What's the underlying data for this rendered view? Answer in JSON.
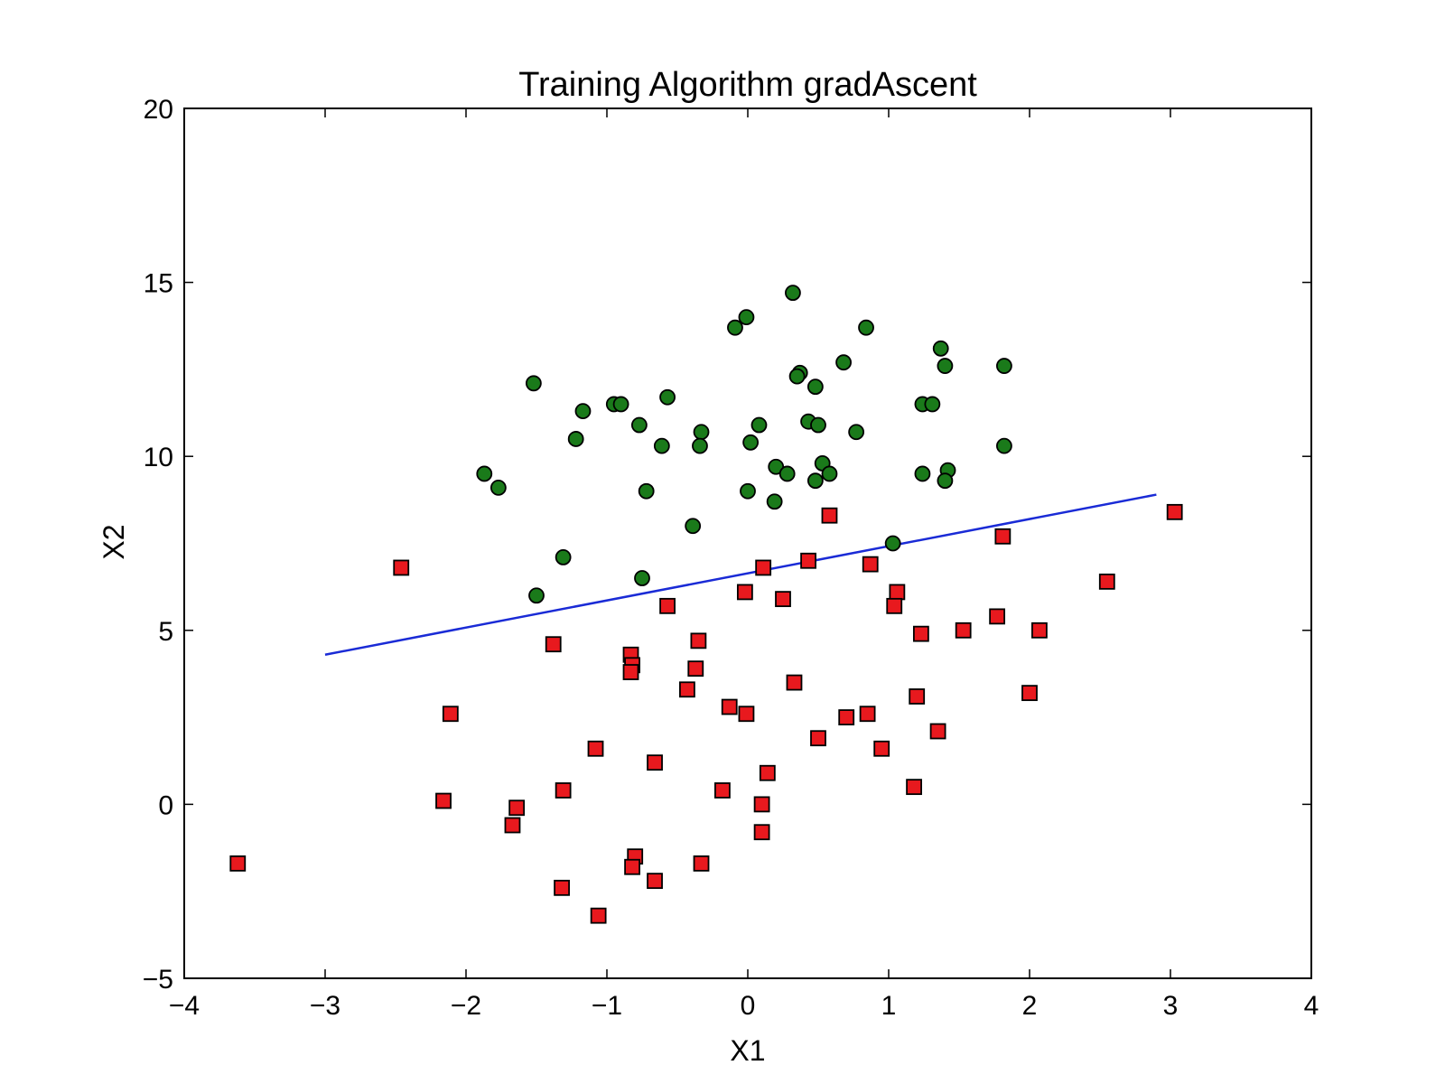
{
  "chart_data": {
    "type": "scatter",
    "title": "Training Algorithm gradAscent",
    "xlabel": "X1",
    "ylabel": "X2",
    "xlim": [
      -4,
      4
    ],
    "ylim": [
      -5,
      20
    ],
    "xticks": [
      -4,
      -3,
      -2,
      -1,
      0,
      1,
      2,
      3,
      4
    ],
    "yticks": [
      -5,
      0,
      5,
      10,
      15,
      20
    ],
    "xtick_labels": [
      "−4",
      "−3",
      "−2",
      "−1",
      "0",
      "1",
      "2",
      "3",
      "4"
    ],
    "ytick_labels": [
      "−5",
      "0",
      "5",
      "10",
      "15",
      "20"
    ],
    "grid": false,
    "colors": {
      "class1_fill": "#1a7a1a",
      "class0_fill": "#e8191e",
      "line": "#1a2bd6",
      "marker_edge": "#000000"
    },
    "series": [
      {
        "marker": "circle",
        "points": [
          [
            0.32,
            14.7
          ],
          [
            -0.01,
            14.0
          ],
          [
            -0.09,
            13.7
          ],
          [
            0.84,
            13.7
          ],
          [
            1.37,
            13.1
          ],
          [
            0.68,
            12.7
          ],
          [
            1.82,
            12.6
          ],
          [
            1.4,
            12.6
          ],
          [
            0.37,
            12.4
          ],
          [
            0.35,
            12.3
          ],
          [
            -1.52,
            12.1
          ],
          [
            0.48,
            12.0
          ],
          [
            -0.57,
            11.7
          ],
          [
            1.24,
            11.5
          ],
          [
            1.31,
            11.5
          ],
          [
            -0.95,
            11.5
          ],
          [
            -0.9,
            11.5
          ],
          [
            -1.17,
            11.3
          ],
          [
            0.43,
            11.0
          ],
          [
            0.5,
            10.9
          ],
          [
            0.08,
            10.9
          ],
          [
            -0.77,
            10.9
          ],
          [
            -0.33,
            10.7
          ],
          [
            0.77,
            10.7
          ],
          [
            -1.22,
            10.5
          ],
          [
            0.02,
            10.4
          ],
          [
            -0.61,
            10.3
          ],
          [
            -0.34,
            10.3
          ],
          [
            1.82,
            10.3
          ],
          [
            0.53,
            9.8
          ],
          [
            0.2,
            9.7
          ],
          [
            1.42,
            9.6
          ],
          [
            1.24,
            9.5
          ],
          [
            0.28,
            9.5
          ],
          [
            0.58,
            9.5
          ],
          [
            -1.87,
            9.5
          ],
          [
            0.48,
            9.3
          ],
          [
            1.4,
            9.3
          ],
          [
            -1.77,
            9.1
          ],
          [
            -0.72,
            9.0
          ],
          [
            0.0,
            9.0
          ],
          [
            0.19,
            8.7
          ],
          [
            -0.39,
            8.0
          ],
          [
            1.03,
            7.5
          ],
          [
            -1.31,
            7.1
          ],
          [
            -0.75,
            6.5
          ],
          [
            -1.5,
            6.0
          ]
        ]
      },
      {
        "marker": "square",
        "points": [
          [
            3.03,
            8.4
          ],
          [
            0.58,
            8.3
          ],
          [
            1.81,
            7.7
          ],
          [
            0.43,
            7.0
          ],
          [
            0.87,
            6.9
          ],
          [
            -2.46,
            6.8
          ],
          [
            0.11,
            6.8
          ],
          [
            2.55,
            6.4
          ],
          [
            -0.02,
            6.1
          ],
          [
            1.06,
            6.1
          ],
          [
            0.25,
            5.9
          ],
          [
            -0.57,
            5.7
          ],
          [
            1.04,
            5.7
          ],
          [
            1.77,
            5.4
          ],
          [
            1.53,
            5.0
          ],
          [
            2.07,
            5.0
          ],
          [
            1.23,
            4.9
          ],
          [
            -0.35,
            4.7
          ],
          [
            -1.38,
            4.6
          ],
          [
            -0.83,
            4.3
          ],
          [
            -0.82,
            4.0
          ],
          [
            -0.83,
            3.8
          ],
          [
            -0.37,
            3.9
          ],
          [
            0.33,
            3.5
          ],
          [
            -0.43,
            3.3
          ],
          [
            1.2,
            3.1
          ],
          [
            2.0,
            3.2
          ],
          [
            -0.13,
            2.8
          ],
          [
            -0.01,
            2.6
          ],
          [
            -2.11,
            2.6
          ],
          [
            0.85,
            2.6
          ],
          [
            0.7,
            2.5
          ],
          [
            1.35,
            2.1
          ],
          [
            0.5,
            1.9
          ],
          [
            -1.08,
            1.6
          ],
          [
            0.95,
            1.6
          ],
          [
            -0.66,
            1.2
          ],
          [
            0.14,
            0.9
          ],
          [
            1.18,
            0.5
          ],
          [
            -1.31,
            0.4
          ],
          [
            -0.18,
            0.4
          ],
          [
            -2.16,
            0.1
          ],
          [
            0.1,
            0.0
          ],
          [
            -1.64,
            -0.1
          ],
          [
            -1.67,
            -0.6
          ],
          [
            0.1,
            -0.8
          ],
          [
            -3.62,
            -1.7
          ],
          [
            -0.8,
            -1.5
          ],
          [
            -0.82,
            -1.8
          ],
          [
            -0.33,
            -1.7
          ],
          [
            -0.66,
            -2.2
          ],
          [
            -1.32,
            -2.4
          ],
          [
            -1.06,
            -3.2
          ]
        ]
      }
    ],
    "decision_line": {
      "x": [
        -3.0,
        2.9
      ],
      "y": [
        4.3,
        8.9
      ]
    }
  }
}
